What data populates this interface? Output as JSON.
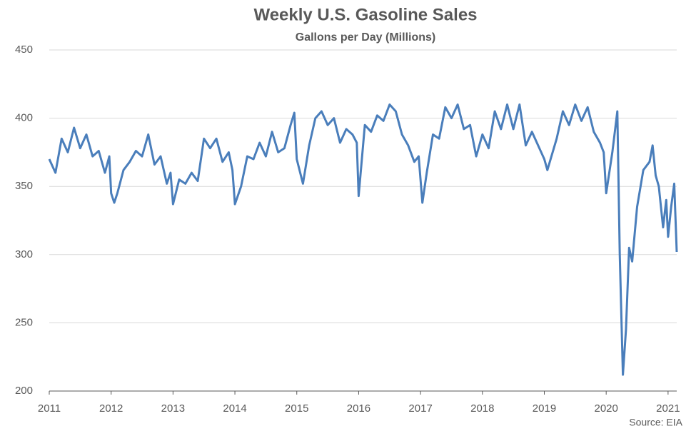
{
  "chart_data": {
    "type": "line",
    "title": "Weekly U.S. Gasoline Sales",
    "subtitle": "Gallons per Day (Millions)",
    "source": "Source: EIA",
    "x": [
      2011.0,
      2011.1,
      2011.2,
      2011.3,
      2011.4,
      2011.5,
      2011.6,
      2011.7,
      2011.8,
      2011.9,
      2011.97,
      2012.0,
      2012.05,
      2012.1,
      2012.2,
      2012.3,
      2012.4,
      2012.5,
      2012.6,
      2012.7,
      2012.8,
      2012.9,
      2012.96,
      2013.0,
      2013.1,
      2013.2,
      2013.3,
      2013.4,
      2013.5,
      2013.6,
      2013.7,
      2013.8,
      2013.9,
      2013.96,
      2014.0,
      2014.1,
      2014.2,
      2014.3,
      2014.4,
      2014.5,
      2014.6,
      2014.7,
      2014.8,
      2014.9,
      2014.96,
      2015.0,
      2015.1,
      2015.2,
      2015.3,
      2015.4,
      2015.5,
      2015.6,
      2015.7,
      2015.8,
      2015.9,
      2015.97,
      2016.0,
      2016.1,
      2016.2,
      2016.3,
      2016.4,
      2016.5,
      2016.6,
      2016.7,
      2016.8,
      2016.9,
      2016.97,
      2017.03,
      2017.1,
      2017.2,
      2017.3,
      2017.4,
      2017.5,
      2017.6,
      2017.7,
      2017.8,
      2017.9,
      2018.0,
      2018.1,
      2018.2,
      2018.3,
      2018.4,
      2018.5,
      2018.6,
      2018.7,
      2018.8,
      2018.9,
      2019.0,
      2019.05,
      2019.2,
      2019.3,
      2019.4,
      2019.5,
      2019.6,
      2019.7,
      2019.8,
      2019.9,
      2019.96,
      2020.0,
      2020.1,
      2020.18,
      2020.22,
      2020.27,
      2020.32,
      2020.37,
      2020.42,
      2020.5,
      2020.6,
      2020.7,
      2020.75,
      2020.8,
      2020.85,
      2020.92,
      2020.97,
      2021.0,
      2021.05,
      2021.1,
      2021.14
    ],
    "series": [
      {
        "name": "Weekly U.S. Gasoline Sales",
        "color": "#4a7ebb",
        "values": [
          370,
          360,
          385,
          375,
          393,
          378,
          388,
          372,
          376,
          360,
          372,
          345,
          338,
          345,
          362,
          368,
          376,
          372,
          388,
          366,
          372,
          352,
          360,
          337,
          355,
          352,
          360,
          354,
          385,
          378,
          385,
          368,
          375,
          362,
          337,
          350,
          372,
          370,
          382,
          372,
          390,
          375,
          378,
          395,
          404,
          370,
          352,
          380,
          400,
          405,
          395,
          400,
          382,
          392,
          388,
          382,
          343,
          395,
          390,
          402,
          398,
          410,
          405,
          388,
          380,
          368,
          372,
          338,
          360,
          388,
          385,
          408,
          400,
          410,
          392,
          395,
          372,
          388,
          378,
          405,
          392,
          410,
          392,
          410,
          380,
          390,
          380,
          370,
          362,
          385,
          405,
          395,
          410,
          398,
          408,
          390,
          382,
          375,
          345,
          375,
          405,
          300,
          212,
          245,
          305,
          295,
          335,
          362,
          368,
          380,
          358,
          350,
          320,
          340,
          313,
          335,
          352,
          302
        ]
      }
    ],
    "xlim": [
      2011,
      2021.14
    ],
    "xticks": [
      2011,
      2012,
      2013,
      2014,
      2015,
      2016,
      2017,
      2018,
      2019,
      2020,
      2021
    ],
    "ylim": [
      200,
      450
    ],
    "yticks": [
      200,
      250,
      300,
      350,
      400,
      450
    ],
    "grid": true
  }
}
